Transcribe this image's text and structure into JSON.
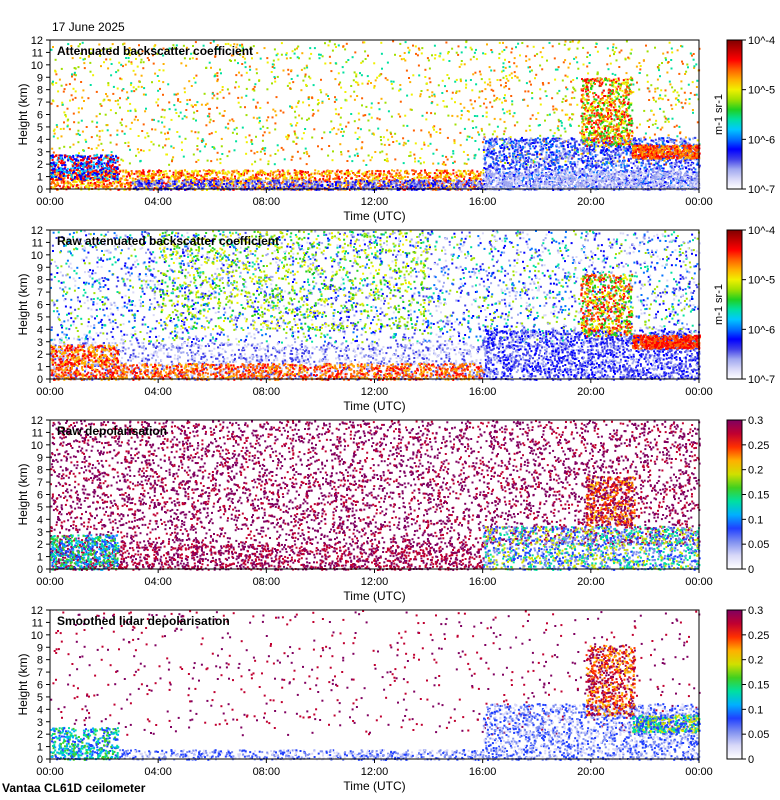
{
  "header": {
    "date": "17 June 2025"
  },
  "footer": {
    "instrument": "Vantaa CL61D ceilometer"
  },
  "chart_data": [
    {
      "type": "heatmap",
      "title": "Attenuated backscatter coefficient",
      "xlabel": "Time (UTC)",
      "ylabel": "Height (km)",
      "xticks": [
        "00:00",
        "04:00",
        "08:00",
        "12:00",
        "16:00",
        "20:00",
        "00:00"
      ],
      "yticks": [
        "0",
        "1",
        "2",
        "3",
        "4",
        "5",
        "6",
        "7",
        "8",
        "9",
        "10",
        "11",
        "12"
      ],
      "ylim": [
        0,
        12
      ],
      "colorbar": {
        "scale": "log",
        "ticks": [
          "10^-7",
          "10^-6",
          "10^-5",
          "10^-4"
        ],
        "unit": "m-1 sr-1"
      },
      "features": [
        {
          "name": "boundary layer",
          "from_h": 0,
          "to_h": 16,
          "top_km": 1.8,
          "level": "high"
        },
        {
          "name": "aerosol layer",
          "from_h": 16,
          "to_h": 24,
          "top_km": 4.5,
          "level": "medium"
        },
        {
          "name": "cloud",
          "from_h": 19.6,
          "to_h": 22.5,
          "top_km": 9.0,
          "level": "high"
        }
      ]
    },
    {
      "type": "heatmap",
      "title": "Raw attenuated backscatter coefficient",
      "xlabel": "Time (UTC)",
      "ylabel": "Height (km)",
      "xticks": [
        "00:00",
        "04:00",
        "08:00",
        "12:00",
        "16:00",
        "20:00",
        "00:00"
      ],
      "yticks": [
        "0",
        "1",
        "2",
        "3",
        "4",
        "5",
        "6",
        "7",
        "8",
        "9",
        "10",
        "11",
        "12"
      ],
      "ylim": [
        0,
        12
      ],
      "colorbar": {
        "scale": "log",
        "ticks": [
          "10^-7",
          "10^-6",
          "10^-5",
          "10^-4"
        ],
        "unit": "m-1 sr-1"
      }
    },
    {
      "type": "heatmap",
      "title": "Raw depolarisation",
      "xlabel": "Time (UTC)",
      "ylabel": "Height (km)",
      "xticks": [
        "00:00",
        "04:00",
        "08:00",
        "12:00",
        "16:00",
        "20:00",
        "00:00"
      ],
      "yticks": [
        "0",
        "1",
        "2",
        "3",
        "4",
        "5",
        "6",
        "7",
        "8",
        "9",
        "10",
        "11",
        "12"
      ],
      "ylim": [
        0,
        12
      ],
      "colorbar": {
        "scale": "linear",
        "range": [
          0,
          0.3
        ],
        "ticks": [
          "0",
          "0.05",
          "0.1",
          "0.15",
          "0.2",
          "0.25",
          "0.3"
        ]
      }
    },
    {
      "type": "heatmap",
      "title": "Smoothed lidar depolarisation",
      "xlabel": "Time (UTC)",
      "ylabel": "Height (km)",
      "xticks": [
        "00:00",
        "04:00",
        "08:00",
        "12:00",
        "16:00",
        "20:00",
        "00:00"
      ],
      "yticks": [
        "0",
        "1",
        "2",
        "3",
        "4",
        "5",
        "6",
        "7",
        "8",
        "9",
        "10",
        "11",
        "12"
      ],
      "ylim": [
        0,
        12
      ],
      "colorbar": {
        "scale": "linear",
        "range": [
          0,
          0.3
        ],
        "ticks": [
          "0",
          "0.05",
          "0.1",
          "0.15",
          "0.2",
          "0.25",
          "0.3"
        ]
      }
    }
  ]
}
